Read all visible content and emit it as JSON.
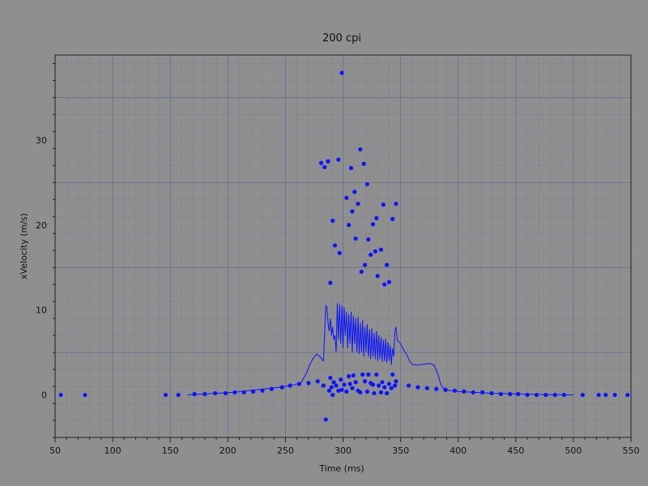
{
  "chart_data": {
    "type": "scatter",
    "title": "200 cpi",
    "xlabel": "Time (ms)",
    "ylabel": "xVelocity (m/s)",
    "xlim": [
      50,
      550
    ],
    "ylim": [
      -5,
      40
    ],
    "xticks": [
      50,
      100,
      150,
      200,
      250,
      300,
      350,
      400,
      450,
      500,
      550
    ],
    "yticks": [
      0,
      10,
      20,
      30
    ],
    "grid": true,
    "minor_grid": true,
    "colors": {
      "background": "#8f8f8f",
      "grid": "#6f7393",
      "series": "#0b14ff"
    },
    "series": [
      {
        "kind": "scatter",
        "points": [
          [
            55,
            0
          ],
          [
            76,
            0
          ],
          [
            146,
            0
          ],
          [
            157,
            0
          ],
          [
            171,
            0.1
          ],
          [
            180,
            0.1
          ],
          [
            189,
            0.2
          ],
          [
            198,
            0.2
          ],
          [
            206,
            0.3
          ],
          [
            214,
            0.3
          ],
          [
            222,
            0.4
          ],
          [
            230,
            0.5
          ],
          [
            238,
            0.7
          ],
          [
            247,
            0.9
          ],
          [
            254,
            1.1
          ],
          [
            262,
            1.3
          ],
          [
            270,
            1.4
          ],
          [
            278,
            1.6
          ],
          [
            283,
            1.1
          ],
          [
            281,
            27.3
          ],
          [
            284,
            26.8
          ],
          [
            287,
            27.5
          ],
          [
            296,
            27.7
          ],
          [
            299,
            37.9
          ],
          [
            285,
            -2.9
          ],
          [
            289,
            13.2
          ],
          [
            291,
            20.5
          ],
          [
            293,
            17.6
          ],
          [
            297,
            16.7
          ],
          [
            303,
            23.2
          ],
          [
            305,
            20
          ],
          [
            307,
            26.7
          ],
          [
            308,
            21.6
          ],
          [
            310,
            23.9
          ],
          [
            311,
            18.4
          ],
          [
            313,
            22.5
          ],
          [
            315,
            28.9
          ],
          [
            316,
            14.5
          ],
          [
            318,
            27.2
          ],
          [
            319,
            15.3
          ],
          [
            321,
            24.8
          ],
          [
            322,
            18.3
          ],
          [
            324,
            16.5
          ],
          [
            326,
            20.1
          ],
          [
            328,
            16.9
          ],
          [
            329,
            20.8
          ],
          [
            330,
            14
          ],
          [
            333,
            17.1
          ],
          [
            335,
            22.4
          ],
          [
            336,
            13
          ],
          [
            338,
            15.3
          ],
          [
            340,
            13.3
          ],
          [
            343,
            20.7
          ],
          [
            346,
            22.5
          ],
          [
            288,
            0.5
          ],
          [
            289,
            2
          ],
          [
            290,
            0.9
          ],
          [
            291,
            0
          ],
          [
            292,
            1.5
          ],
          [
            294,
            1.1
          ],
          [
            296,
            0.5
          ],
          [
            298,
            1.8
          ],
          [
            299,
            0.6
          ],
          [
            301,
            1.2
          ],
          [
            303,
            0.4
          ],
          [
            305,
            2.2
          ],
          [
            306,
            1.3
          ],
          [
            308,
            0.8
          ],
          [
            309,
            2.3
          ],
          [
            311,
            1.5
          ],
          [
            313,
            0.5
          ],
          [
            315,
            0.3
          ],
          [
            317,
            2.4
          ],
          [
            319,
            1.6
          ],
          [
            321,
            0.4
          ],
          [
            322,
            2.4
          ],
          [
            324,
            1.4
          ],
          [
            326,
            1.2
          ],
          [
            327,
            0.2
          ],
          [
            329,
            2.4
          ],
          [
            331,
            1.1
          ],
          [
            333,
            0.3
          ],
          [
            334,
            1.5
          ],
          [
            336,
            0.9
          ],
          [
            338,
            0.2
          ],
          [
            340,
            1.3
          ],
          [
            342,
            0.8
          ],
          [
            343,
            2.4
          ],
          [
            345,
            1.1
          ],
          [
            346,
            1.6
          ],
          [
            357,
            1.1
          ],
          [
            365,
            0.9
          ],
          [
            373,
            0.8
          ],
          [
            381,
            0.7
          ],
          [
            389,
            0.6
          ],
          [
            397,
            0.5
          ],
          [
            405,
            0.4
          ],
          [
            413,
            0.3
          ],
          [
            421,
            0.3
          ],
          [
            429,
            0.2
          ],
          [
            437,
            0.1
          ],
          [
            445,
            0.1
          ],
          [
            452,
            0.1
          ],
          [
            460,
            0
          ],
          [
            468,
            0
          ],
          [
            476,
            0
          ],
          [
            484,
            0
          ],
          [
            492,
            0
          ],
          [
            508,
            0
          ],
          [
            522,
            0
          ],
          [
            528,
            0
          ],
          [
            536,
            0
          ],
          [
            547,
            0
          ]
        ]
      },
      {
        "kind": "line",
        "points": [
          [
            165,
            0
          ],
          [
            185,
            0.15
          ],
          [
            205,
            0.3
          ],
          [
            225,
            0.6
          ],
          [
            245,
            0.9
          ],
          [
            258,
            1.2
          ],
          [
            264,
            1.5
          ],
          [
            268,
            2.5
          ],
          [
            271,
            3.5
          ],
          [
            274,
            4.3
          ],
          [
            277,
            4.8
          ],
          [
            280,
            4.5
          ],
          [
            283,
            4
          ],
          [
            284,
            7
          ],
          [
            285,
            10.5
          ],
          [
            286,
            10.3
          ],
          [
            287,
            8.5
          ],
          [
            288,
            7.5
          ],
          [
            289,
            9
          ],
          [
            290,
            7
          ],
          [
            291,
            8
          ],
          [
            292,
            6.5
          ],
          [
            293,
            7
          ],
          [
            294,
            5
          ],
          [
            295,
            10.8
          ],
          [
            296,
            6.5
          ],
          [
            297,
            10.7
          ],
          [
            298,
            6
          ],
          [
            299,
            10.5
          ],
          [
            300,
            5.5
          ],
          [
            301,
            10.3
          ],
          [
            302,
            7
          ],
          [
            303,
            9.8
          ],
          [
            304,
            5.5
          ],
          [
            305,
            9.5
          ],
          [
            306,
            6
          ],
          [
            307,
            9.8
          ],
          [
            308,
            5
          ],
          [
            309,
            9.3
          ],
          [
            310,
            6
          ],
          [
            311,
            9
          ],
          [
            312,
            5
          ],
          [
            313,
            9.2
          ],
          [
            314,
            4.8
          ],
          [
            315,
            8.5
          ],
          [
            316,
            5
          ],
          [
            317,
            8.8
          ],
          [
            318,
            4.5
          ],
          [
            319,
            8
          ],
          [
            320,
            5
          ],
          [
            321,
            8.3
          ],
          [
            322,
            4.5
          ],
          [
            323,
            7.7
          ],
          [
            324,
            4.2
          ],
          [
            325,
            7.8
          ],
          [
            326,
            4.5
          ],
          [
            327,
            7.3
          ],
          [
            328,
            4.2
          ],
          [
            329,
            7.5
          ],
          [
            330,
            4
          ],
          [
            331,
            7
          ],
          [
            332,
            4.2
          ],
          [
            333,
            6.8
          ],
          [
            334,
            3.9
          ],
          [
            335,
            6.5
          ],
          [
            336,
            4
          ],
          [
            337,
            6.6
          ],
          [
            338,
            3.8
          ],
          [
            339,
            6.2
          ],
          [
            340,
            4
          ],
          [
            341,
            5.8
          ],
          [
            342,
            3.5
          ],
          [
            343,
            5.5
          ],
          [
            344,
            4.5
          ],
          [
            345,
            7.5
          ],
          [
            346,
            8
          ],
          [
            347,
            6.5
          ],
          [
            348,
            6.3
          ],
          [
            350,
            6
          ],
          [
            353,
            5.2
          ],
          [
            356,
            4.6
          ],
          [
            358,
            3.9
          ],
          [
            360,
            3.6
          ],
          [
            365,
            3.5
          ],
          [
            370,
            3.6
          ],
          [
            375,
            3.7
          ],
          [
            379,
            3.5
          ],
          [
            382,
            2.6
          ],
          [
            385,
            1.2
          ],
          [
            388,
            0.6
          ],
          [
            400,
            0.4
          ],
          [
            430,
            0.2
          ],
          [
            470,
            0.05
          ],
          [
            500,
            0
          ]
        ]
      }
    ]
  }
}
